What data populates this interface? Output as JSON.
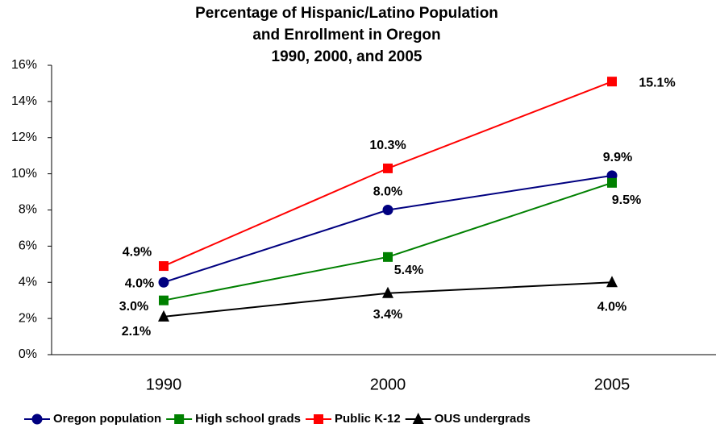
{
  "chart_data": {
    "type": "line",
    "title": [
      "Percentage of Hispanic/Latino Population",
      "and  Enrollment in Oregon",
      "1990, 2000, and 2005"
    ],
    "categories": [
      "1990",
      "2000",
      "2005"
    ],
    "ylim": [
      0,
      16
    ],
    "yticks": [
      {
        "value": 0,
        "label": "0%"
      },
      {
        "value": 2,
        "label": "2%"
      },
      {
        "value": 4,
        "label": "4%"
      },
      {
        "value": 6,
        "label": "6%"
      },
      {
        "value": 8,
        "label": "8%"
      },
      {
        "value": 10,
        "label": "10%"
      },
      {
        "value": 12,
        "label": "12%"
      },
      {
        "value": 14,
        "label": "14%"
      },
      {
        "value": 16,
        "label": "16%"
      }
    ],
    "legend": "bottom",
    "series": [
      {
        "name": "Oregon population",
        "color": "#000080",
        "marker": "circle",
        "values": [
          4.0,
          8.0,
          9.9
        ],
        "value_labels": [
          "4.0%",
          "8.0%",
          "9.9%"
        ]
      },
      {
        "name": "High school grads",
        "color": "#008000",
        "marker": "square",
        "values": [
          3.0,
          5.4,
          9.5
        ],
        "value_labels": [
          "3.0%",
          "5.4%",
          "9.5%"
        ]
      },
      {
        "name": "Public K-12",
        "color": "#ff0000",
        "marker": "square",
        "values": [
          4.9,
          10.3,
          15.1
        ],
        "value_labels": [
          "4.9%",
          "10.3%",
          "15.1%"
        ]
      },
      {
        "name": "OUS undergrads",
        "color": "#000000",
        "marker": "triangle",
        "values": [
          2.1,
          3.4,
          4.0
        ],
        "value_labels": [
          "2.1%",
          "3.4%",
          "4.0%"
        ]
      }
    ]
  }
}
